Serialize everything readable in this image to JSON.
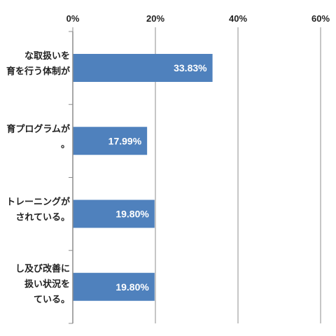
{
  "chart_data": {
    "type": "bar",
    "orientation": "horizontal",
    "title": "",
    "xlabel": "",
    "ylabel": "",
    "xlim": [
      0,
      60
    ],
    "x_ticks": [
      "0%",
      "20%",
      "40%",
      "60%"
    ],
    "x_tick_values": [
      0,
      20,
      40,
      60
    ],
    "grid": true,
    "legend": "none",
    "bar_color": "#4f81bd",
    "categories": [
      [
        "な取扱いを",
        "育を行う体制が"
      ],
      [
        "育プログラムが",
        "。"
      ],
      [
        "トレーニングが",
        "されている。"
      ],
      [
        "し及び改善に",
        "扱い状況を",
        "ている。"
      ]
    ],
    "values": [
      33.83,
      17.99,
      19.8,
      19.8
    ],
    "value_labels": [
      "33.83%",
      "17.99%",
      "19.80%",
      "19.80%"
    ]
  }
}
